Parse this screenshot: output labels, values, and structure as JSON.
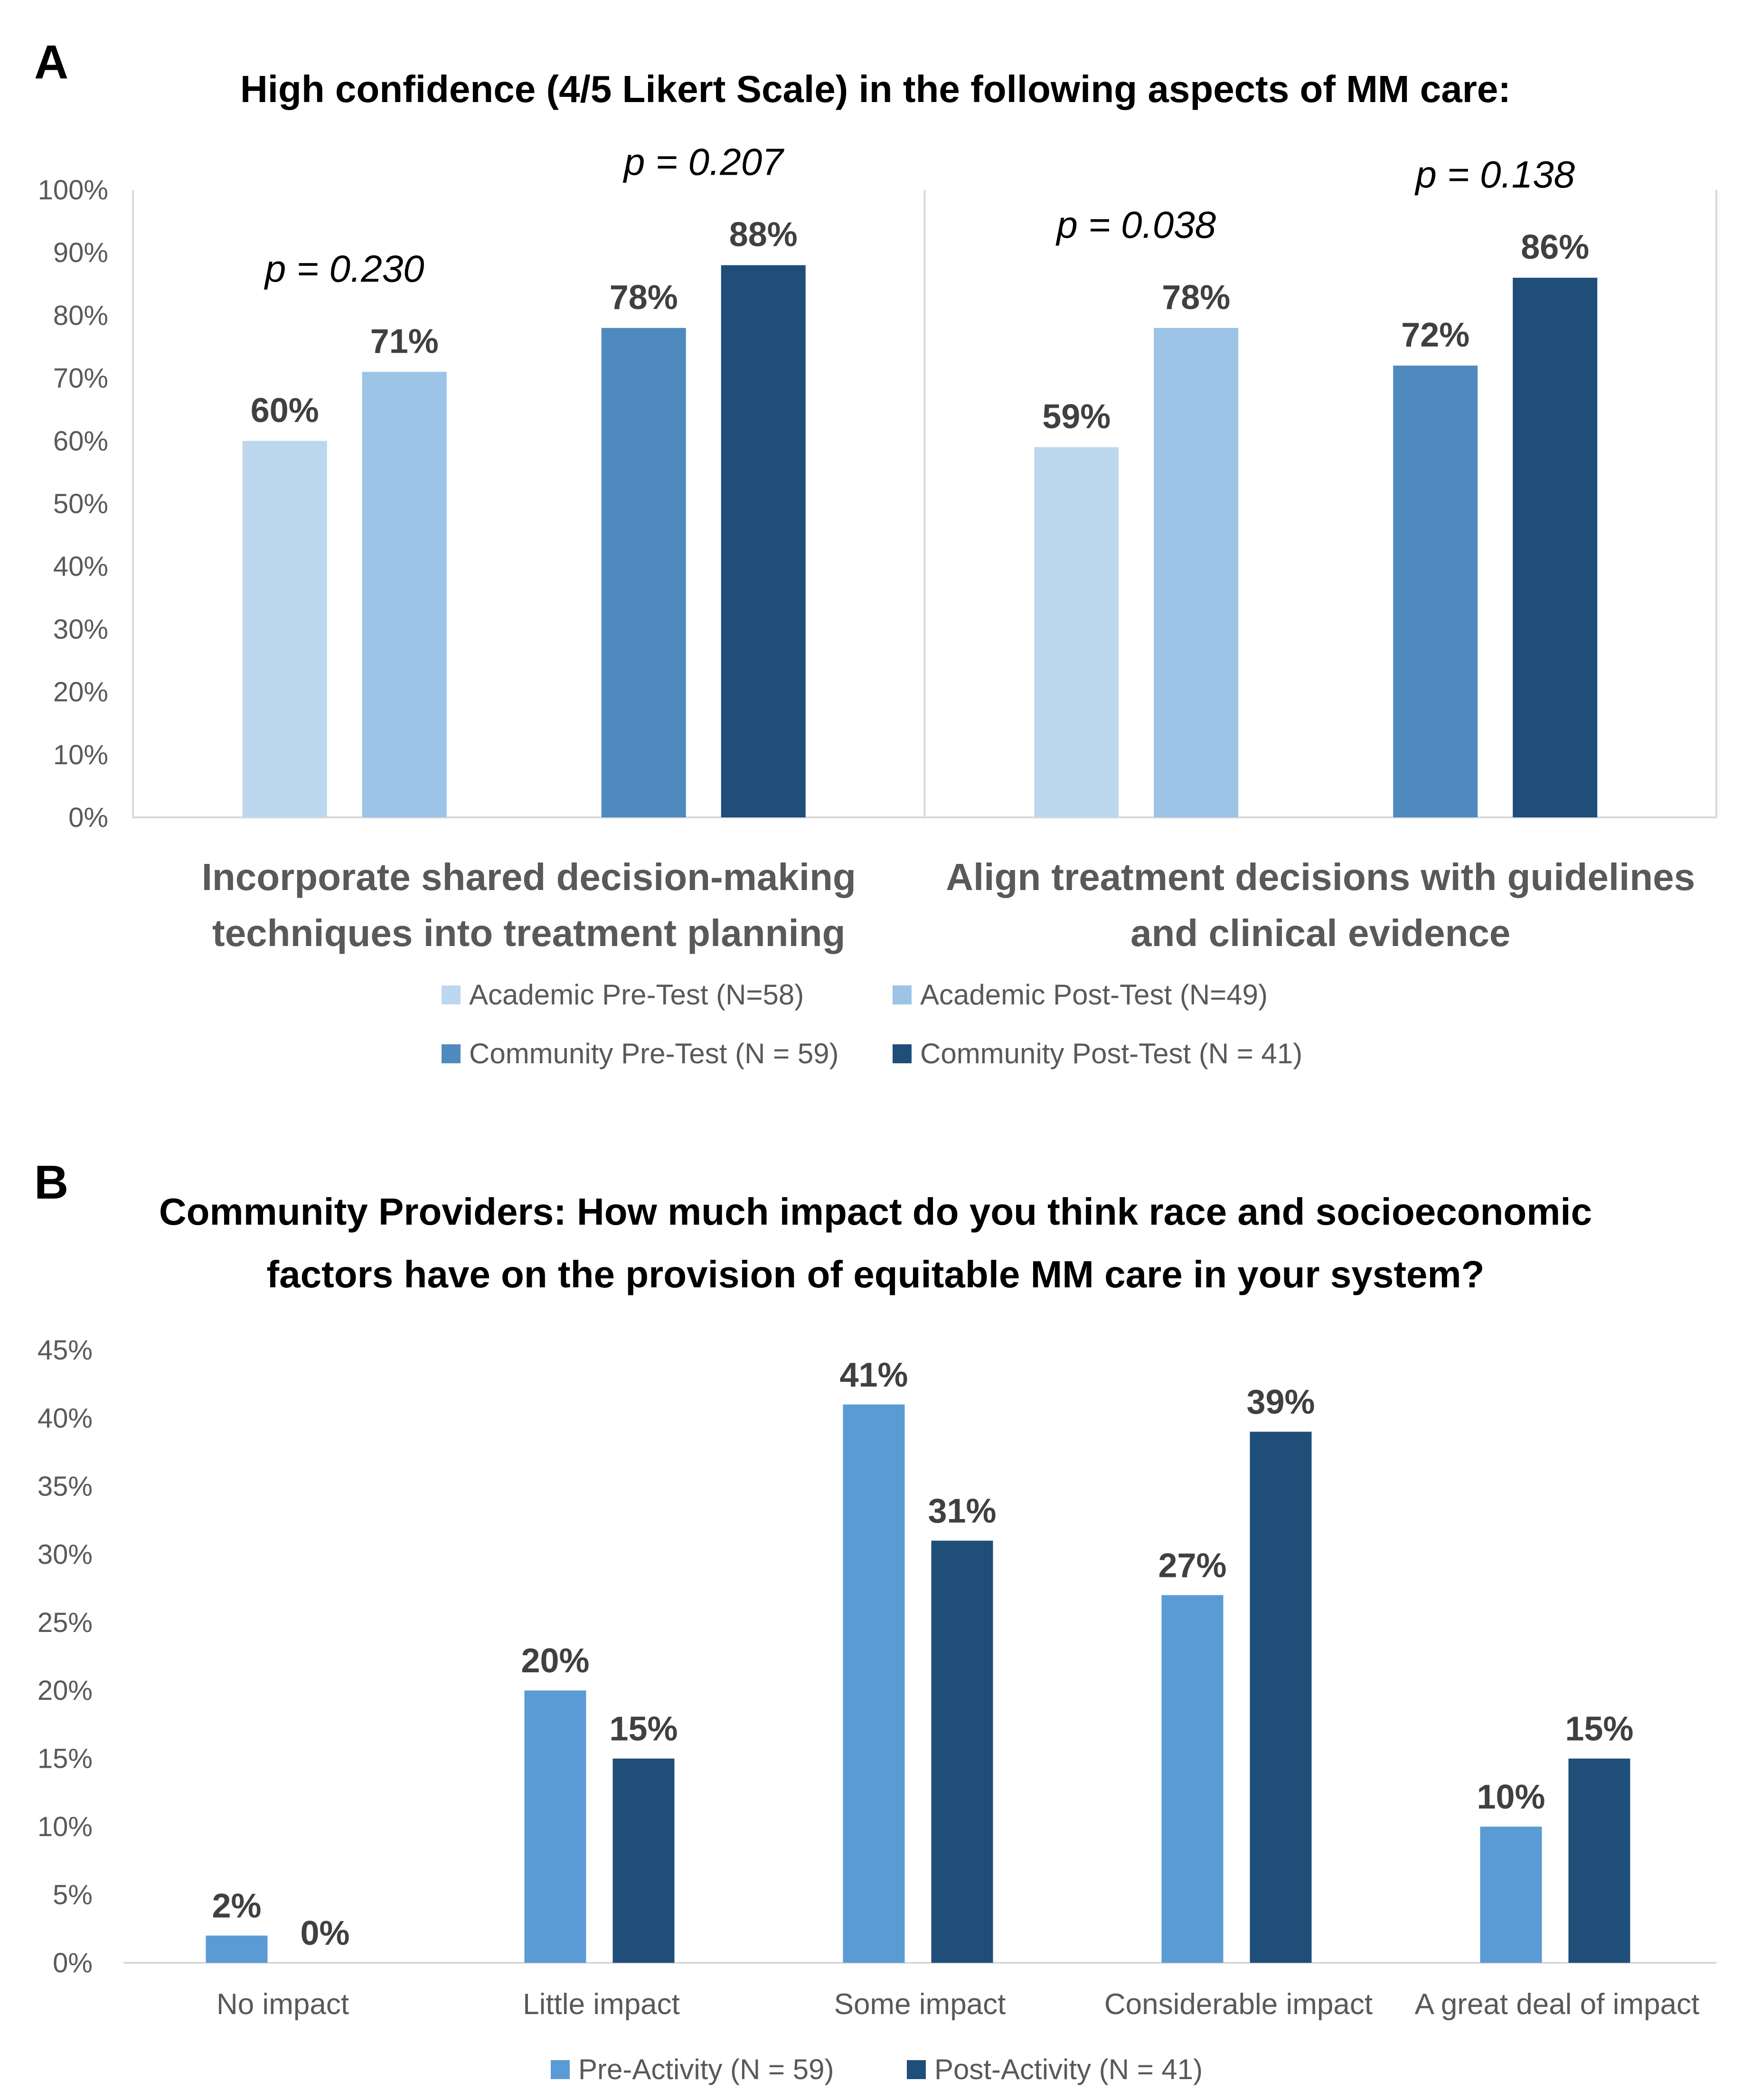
{
  "chart_data": [
    {
      "panel": "A",
      "type": "bar",
      "title": "High confidence (4/5 Likert Scale) in the following aspects of MM care:",
      "ylim": [
        0,
        100
      ],
      "yticks": [
        "0%",
        "10%",
        "20%",
        "30%",
        "40%",
        "50%",
        "60%",
        "70%",
        "80%",
        "90%",
        "100%"
      ],
      "groups": [
        {
          "label_lines": [
            "Incorporate shared decision-making",
            "techniques into treatment planning"
          ],
          "pvalues": [
            "p = 0.230",
            "p = 0.207"
          ]
        },
        {
          "label_lines": [
            "Align treatment decisions with guidelines",
            "and clinical evidence"
          ],
          "pvalues": [
            "p = 0.038",
            "p = 0.138"
          ]
        }
      ],
      "series": [
        {
          "name": "Academic Pre-Test (N=58)",
          "color": "#BDD7EE",
          "values": [
            60,
            59
          ],
          "labels": [
            "60%",
            "59%"
          ]
        },
        {
          "name": "Academic Post-Test (N=49)",
          "color": "#9DC3E6",
          "values": [
            71,
            78
          ],
          "labels": [
            "71%",
            "78%"
          ]
        },
        {
          "name": "Community Pre-Test (N = 59)",
          "color": "#4F8ABE",
          "values": [
            78,
            72
          ],
          "labels": [
            "78%",
            "72%"
          ]
        },
        {
          "name": "Community Post-Test (N = 41)",
          "color": "#1F4E79",
          "values": [
            88,
            86
          ],
          "labels": [
            "88%",
            "86%"
          ]
        }
      ]
    },
    {
      "panel": "B",
      "type": "bar",
      "title_lines": [
        "Community Providers: How much impact do you think race and socioeconomic",
        "factors have on the provision of equitable MM care in your system?"
      ],
      "ylim": [
        0,
        45
      ],
      "yticks": [
        "0%",
        "5%",
        "10%",
        "15%",
        "20%",
        "25%",
        "30%",
        "35%",
        "40%",
        "45%"
      ],
      "categories": [
        "No impact",
        "Little impact",
        "Some impact",
        "Considerable impact",
        "A great deal of impact"
      ],
      "series": [
        {
          "name": "Pre-Activity (N = 59)",
          "color": "#5B9BD5",
          "values": [
            2,
            20,
            41,
            27,
            10
          ],
          "labels": [
            "2%",
            "20%",
            "41%",
            "27%",
            "10%"
          ]
        },
        {
          "name": "Post-Activity (N = 41)",
          "color": "#1F4E79",
          "values": [
            0,
            15,
            31,
            39,
            15
          ],
          "labels": [
            "0%",
            "15%",
            "31%",
            "39%",
            "15%"
          ]
        }
      ]
    }
  ]
}
